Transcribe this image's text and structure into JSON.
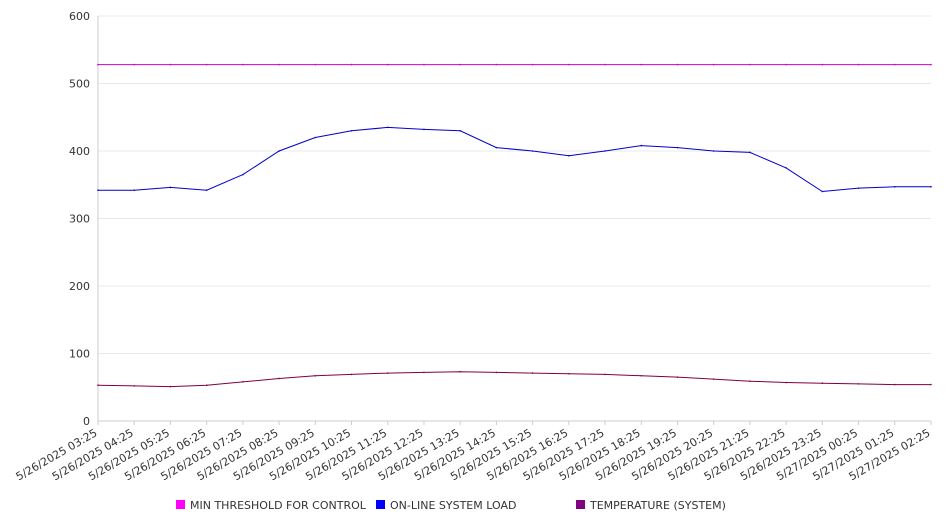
{
  "chart_data": {
    "type": "line",
    "title": "",
    "xlabel": "",
    "ylabel": "",
    "ylim": [
      0,
      600
    ],
    "yticks": [
      0,
      100,
      200,
      300,
      400,
      500,
      600
    ],
    "grid": "horizontal",
    "legend_position": "bottom",
    "x": [
      "5/26/2025 03:25",
      "5/26/2025 04:25",
      "5/26/2025 05:25",
      "5/26/2025 06:25",
      "5/26/2025 07:25",
      "5/26/2025 08:25",
      "5/26/2025 09:25",
      "5/26/2025 10:25",
      "5/26/2025 11:25",
      "5/26/2025 12:25",
      "5/26/2025 13:25",
      "5/26/2025 14:25",
      "5/26/2025 15:25",
      "5/26/2025 16:25",
      "5/26/2025 17:25",
      "5/26/2025 18:25",
      "5/26/2025 19:25",
      "5/26/2025 20:25",
      "5/26/2025 21:25",
      "5/26/2025 22:25",
      "5/26/2025 23:25",
      "5/27/2025 00:25",
      "5/27/2025 01:25",
      "5/27/2025 02:25"
    ],
    "series": [
      {
        "name": "MIN THRESHOLD FOR CONTROL",
        "color": "#cc00cc",
        "legend_color": "#ff00ff",
        "values": [
          528,
          528,
          528,
          528,
          528,
          528,
          528,
          528,
          528,
          528,
          528,
          528,
          528,
          528,
          528,
          528,
          528,
          528,
          528,
          528,
          528,
          528,
          528,
          528
        ]
      },
      {
        "name": "ON-LINE SYSTEM LOAD",
        "color": "#0000cc",
        "legend_color": "#0000ff",
        "values": [
          342,
          342,
          346,
          342,
          365,
          400,
          420,
          430,
          435,
          432,
          430,
          405,
          400,
          393,
          400,
          408,
          405,
          400,
          398,
          375,
          340,
          345,
          347,
          347
        ]
      },
      {
        "name": "TEMPERATURE (SYSTEM)",
        "color": "#800040",
        "legend_color": "#800080",
        "values": [
          53,
          52,
          51,
          53,
          58,
          63,
          67,
          69,
          71,
          72,
          73,
          72,
          71,
          70,
          69,
          67,
          65,
          62,
          59,
          57,
          56,
          55,
          54,
          54
        ]
      }
    ]
  }
}
